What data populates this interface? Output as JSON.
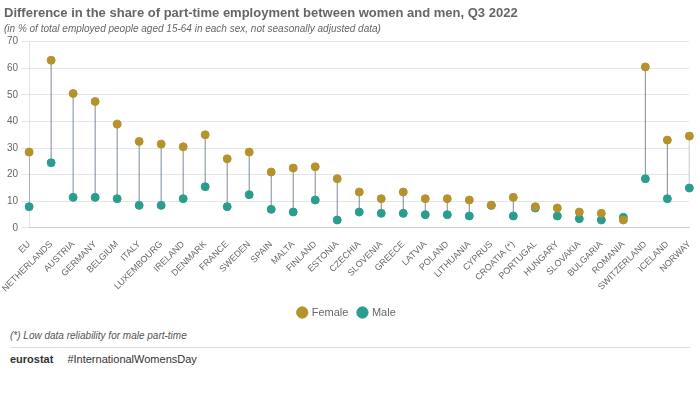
{
  "chart_data": {
    "type": "dumbbell",
    "title": "Difference in the share of part-time employment between women and men, Q3 2022",
    "subtitle": "(in % of total employed people aged 15-64 in each sex, not seasonally adjusted data)",
    "categories": [
      "EU",
      "NETHERLANDS",
      "AUSTRIA",
      "GERMANY",
      "BELGIUM",
      "ITALY",
      "LUXEMBOURG",
      "IRELAND",
      "DENMARK",
      "FRANCE",
      "SWEDEN",
      "SPAIN",
      "MALTA",
      "FINLAND",
      "ESTONIA",
      "CZECHIA",
      "SLOVENIA",
      "GREECE",
      "LATVIA",
      "POLAND",
      "LITHUANIA",
      "CYPRUS",
      "CROATIA (*)",
      "PORTUGAL",
      "HUNGARY",
      "SLOVAKIA",
      "BULGARIA",
      "ROMANIA",
      "SWITZERLAND",
      "ICELAND",
      "NORWAY"
    ],
    "series": [
      {
        "name": "Female",
        "color": "#b5922e",
        "marker": "circle",
        "values": [
          28.5,
          63.0,
          50.5,
          47.5,
          39.0,
          32.5,
          31.5,
          30.5,
          35.0,
          26.0,
          28.5,
          21.0,
          22.5,
          23.0,
          18.5,
          13.5,
          11.0,
          13.5,
          11.0,
          11.0,
          10.5,
          8.5,
          11.5,
          8.0,
          7.5,
          6.0,
          5.5,
          3.0,
          60.5,
          33.0,
          34.5
        ]
      },
      {
        "name": "Male",
        "color": "#2a9d8f",
        "marker": "circle",
        "values": [
          8.0,
          24.5,
          11.5,
          11.5,
          11.0,
          8.5,
          8.5,
          11.0,
          15.5,
          8.0,
          12.5,
          7.0,
          6.0,
          10.5,
          3.0,
          6.0,
          5.5,
          5.5,
          5.0,
          5.0,
          4.5,
          8.5,
          4.5,
          7.5,
          4.5,
          3.5,
          3.0,
          4.0,
          18.5,
          11.0,
          15.0
        ]
      }
    ],
    "ylim": [
      0,
      70
    ],
    "yticks": [
      0,
      10,
      20,
      30,
      40,
      50,
      60,
      70
    ],
    "grid": true,
    "legend": "bottom",
    "annotations": [
      "(*) Low data reliability for male part-time",
      "eurostat",
      "#InternationalWomensDay"
    ]
  }
}
